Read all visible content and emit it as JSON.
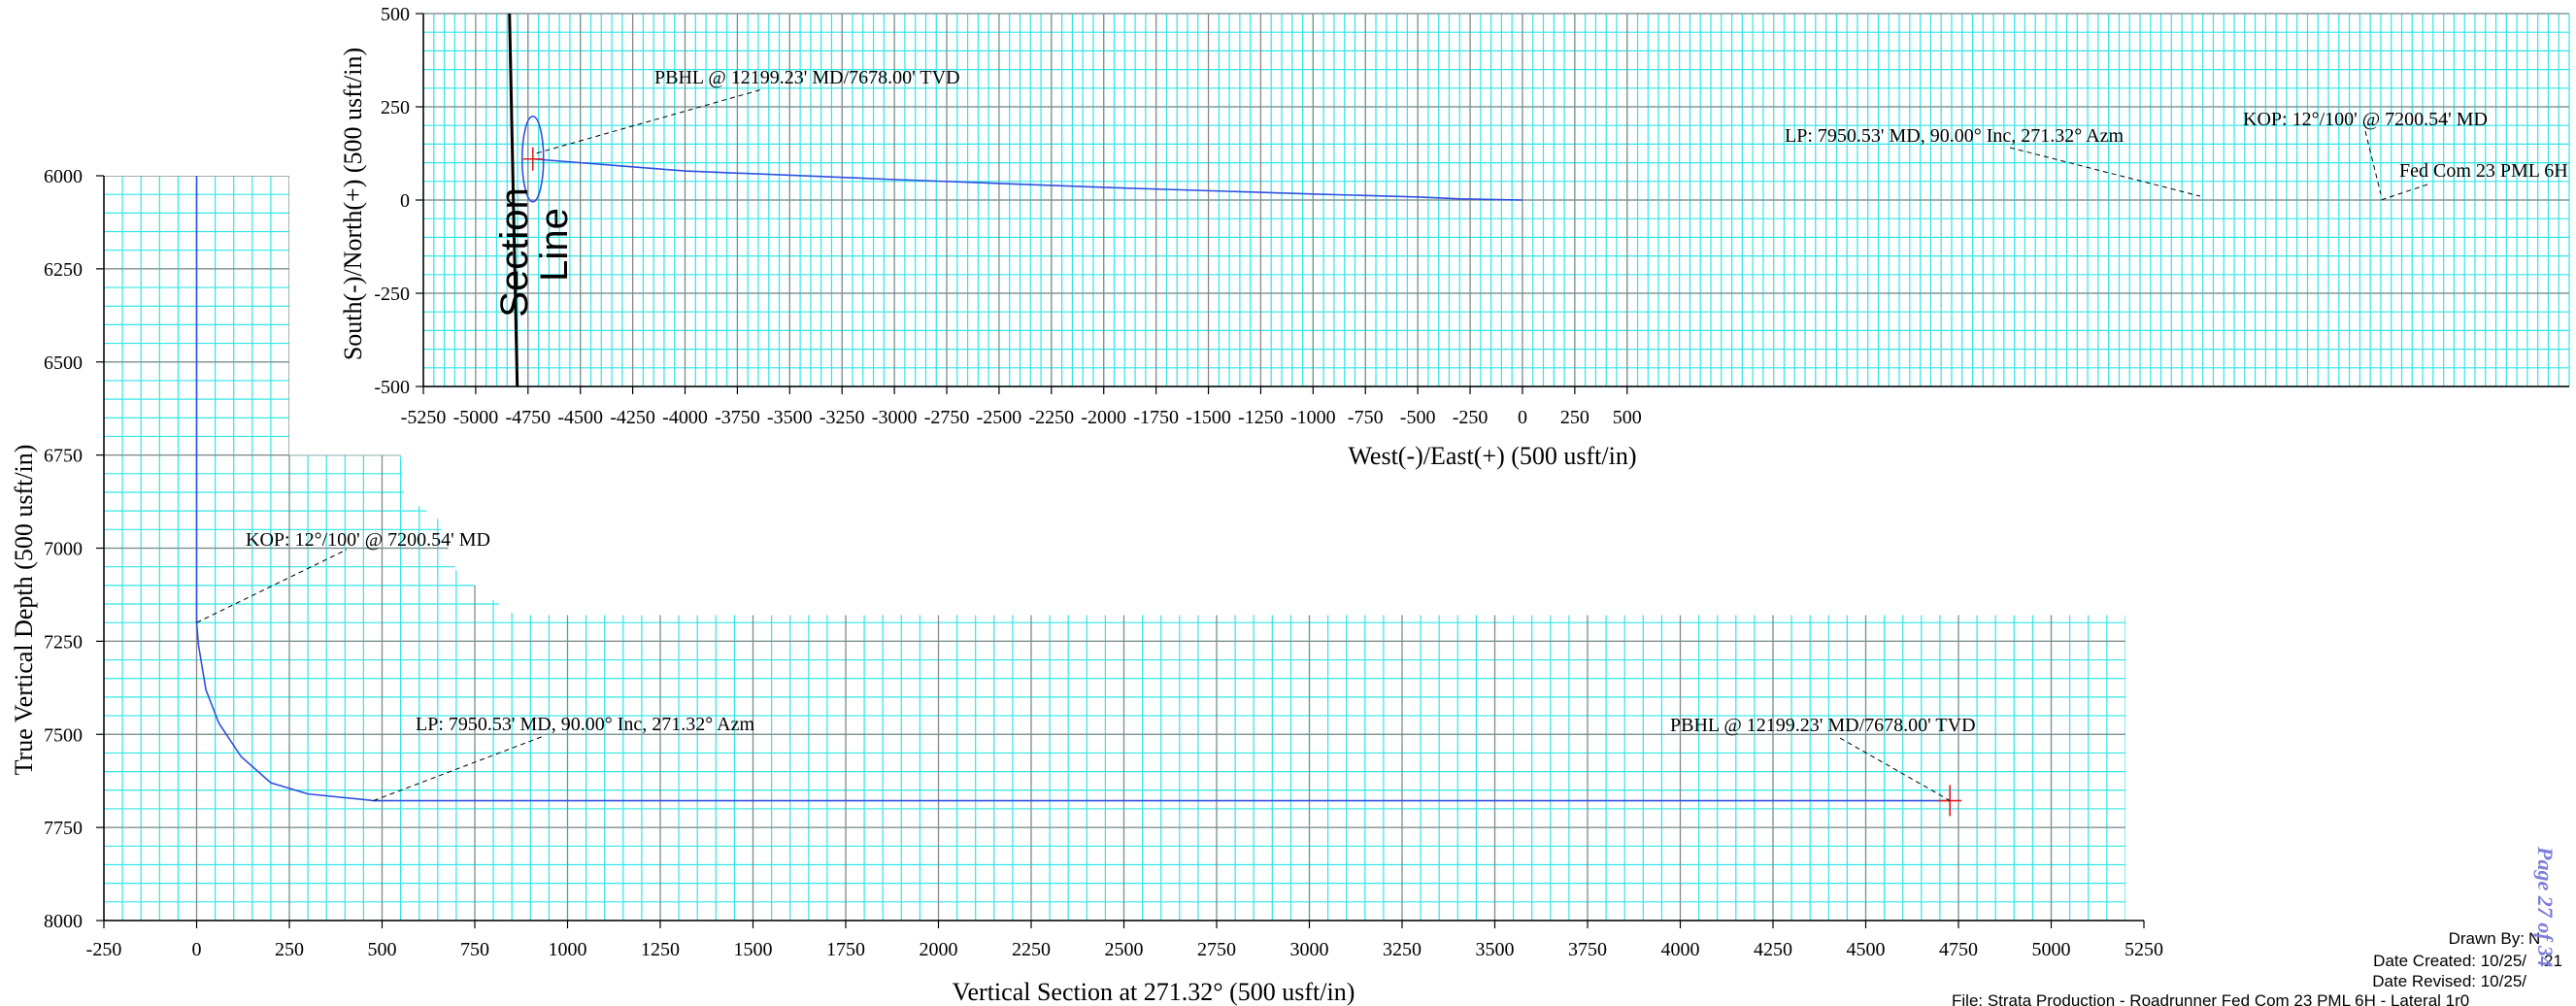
{
  "chart_data": [
    {
      "type": "line",
      "ylabel": "South(-)/North(+) (500 usft/in)",
      "xlabel": "West(-)/East(+) (500 usft/in)",
      "xlim": [
        -5250,
        5000
      ],
      "ylim": [
        -500,
        500
      ],
      "xticks": [
        -5250,
        -5000,
        -4750,
        -4500,
        -4250,
        -4000,
        -3750,
        -3500,
        -3250,
        -3000,
        -2750,
        -2500,
        -2250,
        -2000,
        -1750,
        -1500,
        -1250,
        -1000,
        -750,
        -500,
        -250,
        0,
        250,
        500
      ],
      "yticks": [
        -500,
        -250,
        0,
        250,
        500
      ],
      "grid": true,
      "series": [
        {
          "points": [
            [
              0,
              0
            ],
            [
              -300,
              3
            ],
            [
              -490,
              8
            ],
            [
              -1000,
              16
            ],
            [
              -2000,
              34
            ],
            [
              -3000,
              55
            ],
            [
              -4000,
              78
            ],
            [
              -4727,
              110
            ]
          ]
        }
      ],
      "section_line": {
        "label": "Section Line",
        "x": -4820
      },
      "target_ellipse": {
        "x": -4727,
        "y": 110
      },
      "annotations": {
        "pbhl": "PBHL @ 12199.23' MD/7678.00' TVD",
        "lp": "LP:  7950.53' MD, 90.00° Inc, 271.32° Azm",
        "kop": "KOP: 12°/100' @ 7200.54' MD",
        "well": "Fed Com 23 PML 6H"
      }
    },
    {
      "type": "line",
      "ylabel": "True Vertical Depth (500 usft/in)",
      "xlabel": "Vertical Section at 271.32° (500 usft/in)",
      "xlim": [
        -250,
        5250
      ],
      "ylim": [
        8000,
        6000
      ],
      "xticks": [
        -250,
        0,
        250,
        500,
        750,
        1000,
        1250,
        1500,
        1750,
        2000,
        2250,
        2500,
        2750,
        3000,
        3250,
        3500,
        3750,
        4000,
        4250,
        4500,
        4750,
        5000,
        5250
      ],
      "yticks": [
        6000,
        6250,
        6500,
        6750,
        7000,
        7250,
        7500,
        7750,
        8000
      ],
      "grid": true,
      "series": [
        {
          "points": [
            [
              0,
              6000
            ],
            [
              0,
              7200
            ],
            [
              5,
              7260
            ],
            [
              25,
              7380
            ],
            [
              60,
              7470
            ],
            [
              120,
              7560
            ],
            [
              200,
              7630
            ],
            [
              300,
              7660
            ],
            [
              477,
              7678
            ],
            [
              4727,
              7678
            ]
          ]
        }
      ],
      "annotations": {
        "kop": "KOP: 12°/100' @ 7200.54' MD",
        "lp": "LP:  7950.53' MD, 90.00° Inc, 271.32° Azm",
        "pbhl": "PBHL @ 12199.23' MD/7678.00' TVD"
      }
    }
  ],
  "info": {
    "drawn_by": "Drawn By:",
    "drawn_by_value": "N",
    "date_created": "Date Created: 10/25/",
    "date_created_value": "21",
    "date_revised": "Date Revised: 10/25/",
    "file": "File: Strata Production - Roadrunner Fed Com 23 PML 6H - Lateral 1r0"
  },
  "page_stamp": "Page 27 of 34",
  "colors": {
    "grid_minor": "#33e5e5",
    "grid_major": "#888888",
    "path": "#3050e0",
    "target": "#e02020"
  }
}
